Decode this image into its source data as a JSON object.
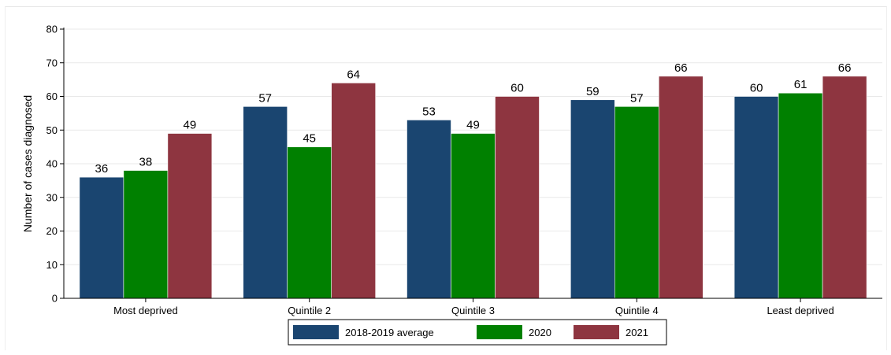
{
  "chart_data": {
    "type": "bar",
    "title": "",
    "xlabel": "",
    "ylabel": "Number of cases diagnosed",
    "ylim": [
      0,
      80
    ],
    "yticks": [
      0,
      10,
      20,
      30,
      40,
      50,
      60,
      70,
      80
    ],
    "grid": true,
    "legend_placement": "bottom-center",
    "categories": [
      "Most deprived",
      "Quintile 2",
      "Quintile 3",
      "Quintile 4",
      "Least deprived"
    ],
    "series": [
      {
        "name": "2018-2019 average",
        "color": "#1a4570",
        "values": [
          36,
          57,
          53,
          59,
          60
        ]
      },
      {
        "name": "2020",
        "color": "#008000",
        "values": [
          38,
          45,
          49,
          57,
          61
        ]
      },
      {
        "name": "2021",
        "color": "#8e3540",
        "values": [
          49,
          64,
          60,
          66,
          66
        ]
      }
    ]
  }
}
